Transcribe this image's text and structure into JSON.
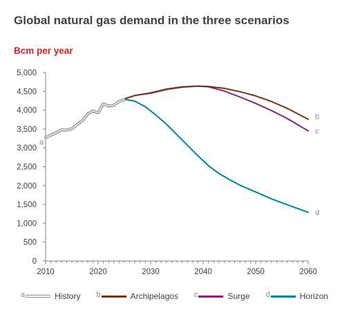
{
  "chart_data": {
    "type": "line",
    "title": "Global natural gas demand in the three scenarios",
    "ylabel": "Bcm per year",
    "xlim": [
      2010,
      2060
    ],
    "ylim": [
      0,
      5000
    ],
    "x_ticks": [
      "2010",
      "2020",
      "2030",
      "2040",
      "2050",
      "2060"
    ],
    "y_ticks": [
      "0",
      "500",
      "1,000",
      "1,500",
      "2,000",
      "2,500",
      "3,000",
      "3,500",
      "4,000",
      "4,500",
      "5,000"
    ],
    "grid": false,
    "legend_position": "bottom",
    "series": [
      {
        "name": "History",
        "letter": "a",
        "color": "#8a8a8a",
        "x": [
          2010,
          2011,
          2012,
          2013,
          2014,
          2015,
          2016,
          2017,
          2018,
          2019,
          2020,
          2021,
          2022,
          2023,
          2024,
          2025
        ],
        "y": [
          3270,
          3340,
          3400,
          3480,
          3470,
          3510,
          3620,
          3720,
          3900,
          3980,
          3930,
          4170,
          4110,
          4130,
          4230,
          4280
        ]
      },
      {
        "name": "Archipelagos",
        "letter": "b",
        "color": "#743410",
        "x": [
          2025,
          2027,
          2030,
          2033,
          2036,
          2039,
          2041,
          2044,
          2047,
          2050,
          2053,
          2056,
          2060
        ],
        "y": [
          4300,
          4390,
          4450,
          4550,
          4610,
          4640,
          4630,
          4580,
          4490,
          4380,
          4230,
          4050,
          3760
        ]
      },
      {
        "name": "Surge",
        "letter": "c",
        "color": "#7f2372",
        "x": [
          2025,
          2027,
          2030,
          2033,
          2036,
          2039,
          2041,
          2044,
          2047,
          2050,
          2053,
          2056,
          2060
        ],
        "y": [
          4300,
          4390,
          4460,
          4560,
          4620,
          4640,
          4620,
          4510,
          4350,
          4180,
          3990,
          3780,
          3450
        ]
      },
      {
        "name": "Horizon",
        "letter": "d",
        "color": "#008299",
        "x": [
          2025,
          2027,
          2029,
          2031,
          2033,
          2035,
          2037,
          2039,
          2041,
          2043,
          2045,
          2047,
          2050,
          2053,
          2056,
          2060
        ],
        "y": [
          4290,
          4240,
          4090,
          3870,
          3630,
          3350,
          3070,
          2790,
          2530,
          2320,
          2160,
          2010,
          1830,
          1650,
          1490,
          1290
        ]
      }
    ]
  }
}
